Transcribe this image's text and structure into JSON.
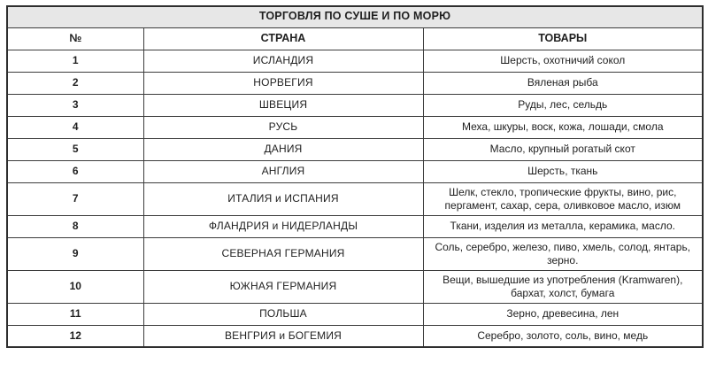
{
  "table": {
    "title": "ТОРГОВЛЯ ПО СУШЕ И ПО МОРЮ",
    "columns": {
      "num": "№",
      "country": "СТРАНА",
      "goods": "ТОВАРЫ"
    },
    "rows": [
      {
        "num": "1",
        "country": "ИСЛАНДИЯ",
        "goods": "Шерсть, охотничий сокол"
      },
      {
        "num": "2",
        "country": "НОРВЕГИЯ",
        "goods": "Вяленая рыба"
      },
      {
        "num": "3",
        "country": "ШВЕЦИЯ",
        "goods": "Руды, лес, сельдь"
      },
      {
        "num": "4",
        "country": "РУСЬ",
        "goods": "Меха, шкуры, воск, кожа, лошади, смола"
      },
      {
        "num": "5",
        "country": "ДАНИЯ",
        "goods": "Масло, крупный рогатый скот"
      },
      {
        "num": "6",
        "country": "АНГЛИЯ",
        "goods": "Шерсть, ткань"
      },
      {
        "num": "7",
        "country": "ИТАЛИЯ и ИСПАНИЯ",
        "goods": "Шелк, стекло, тропические фрукты, вино, рис, пергамент, сахар, сера, оливковое масло, изюм"
      },
      {
        "num": "8",
        "country": "ФЛАНДРИЯ и НИДЕРЛАНДЫ",
        "goods": "Ткани, изделия из металла, керамика, масло."
      },
      {
        "num": "9",
        "country": "СЕВЕРНАЯ ГЕРМАНИЯ",
        "goods": "Соль, серебро, железо, пиво, хмель, солод, янтарь, зерно."
      },
      {
        "num": "10",
        "country": "ЮЖНАЯ ГЕРМАНИЯ",
        "goods": "Вещи, вышедшие из употребления (Kramwaren), бархат, холст, бумага"
      },
      {
        "num": "11",
        "country": "ПОЛЬША",
        "goods": "Зерно, древесина, лен"
      },
      {
        "num": "12",
        "country": "ВЕНГРИЯ и БОГЕМИЯ",
        "goods": "Серебро, золото, соль, вино, медь"
      }
    ],
    "colors": {
      "title_bg": "#e7e7e7",
      "border": "#3c3c3c",
      "outer_border": "#2e2e2e",
      "text": "#1f1f1f"
    }
  }
}
